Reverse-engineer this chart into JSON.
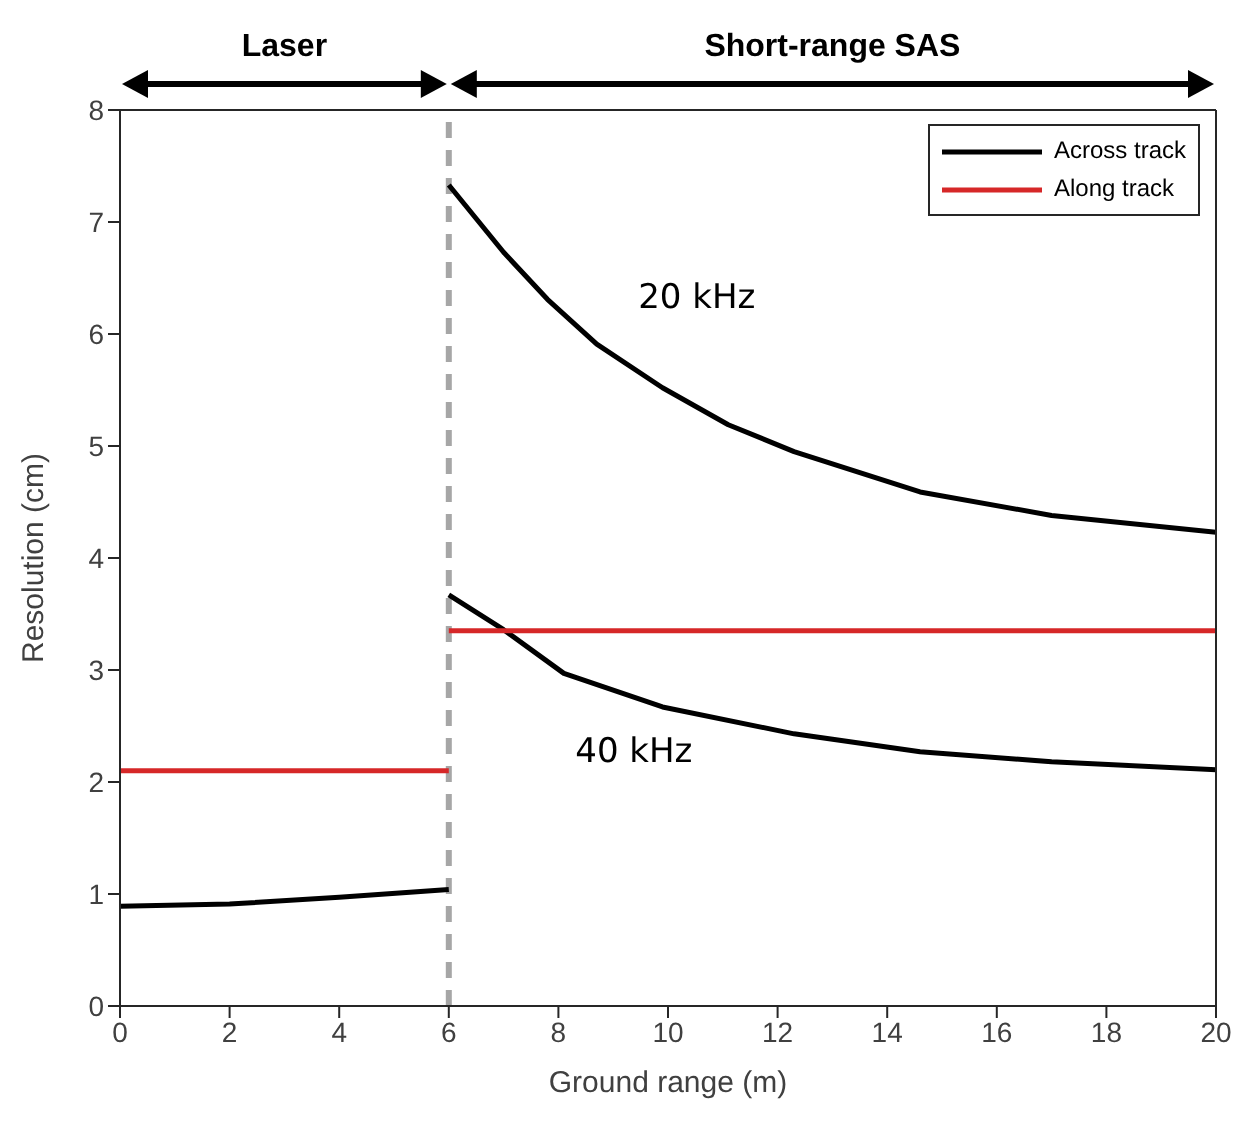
{
  "chart_data": {
    "type": "line",
    "xlabel": "Ground range (m)",
    "ylabel": "Resolution (cm)",
    "xlim": [
      0,
      20
    ],
    "xticks": [
      0,
      2,
      4,
      6,
      8,
      10,
      12,
      14,
      16,
      18,
      20
    ],
    "ylim": [
      0,
      8
    ],
    "yticks": [
      0,
      1,
      2,
      3,
      4,
      5,
      6,
      7,
      8
    ],
    "series": [
      {
        "name": "Across track",
        "color": "#000000",
        "x": [
          0,
          2,
          4,
          6
        ],
        "values": [
          0.89,
          0.91,
          0.97,
          1.04
        ]
      },
      {
        "name": "Along track",
        "color": "#d62728",
        "x": [
          0,
          6
        ],
        "values": [
          2.1,
          2.1
        ]
      },
      {
        "name": "20 kHz",
        "color": "#000000",
        "x": [
          6,
          7,
          7.8,
          8.7,
          9.9,
          11.1,
          12.3,
          14.6,
          17,
          20
        ],
        "values": [
          7.33,
          6.73,
          6.31,
          5.91,
          5.52,
          5.19,
          4.95,
          4.59,
          4.38,
          4.23
        ]
      },
      {
        "name": "40 kHz",
        "color": "#000000",
        "x": [
          6,
          7,
          8.1,
          9.9,
          12.3,
          14.6,
          17,
          20
        ],
        "values": [
          3.67,
          3.36,
          2.97,
          2.67,
          2.43,
          2.27,
          2.18,
          2.11
        ]
      },
      {
        "color": "#d62728",
        "x": [
          6,
          20
        ],
        "values": [
          3.35,
          3.35
        ]
      }
    ],
    "ref_lines": [
      {
        "axis": "x",
        "value": 6,
        "color": "#a6a6a6",
        "line_style": "dashed"
      }
    ],
    "annotations": [
      "Laser",
      "Short-range SAS"
    ],
    "legend": "top right",
    "grid": false,
    "marker": "none",
    "line_style": "solid"
  }
}
